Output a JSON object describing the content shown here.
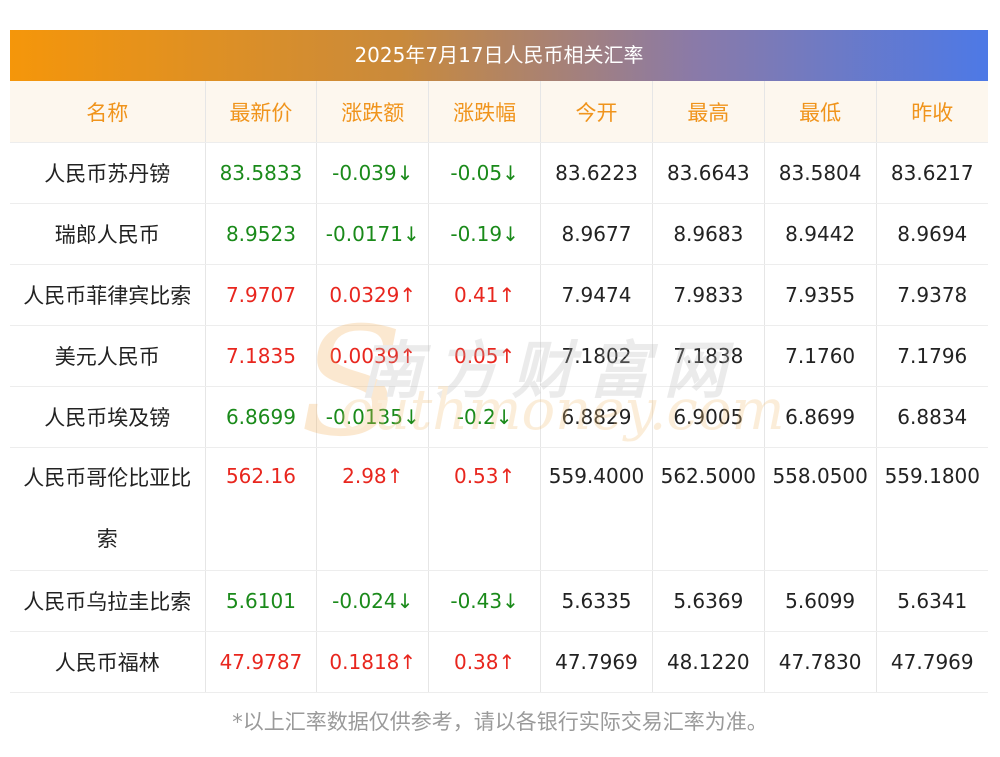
{
  "title": "2025年7月17日人民币相关汇率",
  "columns": [
    "名称",
    "最新价",
    "涨跌额",
    "涨跌幅",
    "今开",
    "最高",
    "最低",
    "昨收"
  ],
  "rows": [
    {
      "name": "人民币苏丹镑",
      "latest": "83.5833",
      "change": "-0.039↓",
      "pct": "-0.05↓",
      "open": "83.6223",
      "high": "83.6643",
      "low": "83.5804",
      "prev": "83.6217",
      "trend": "down"
    },
    {
      "name": "瑞郎人民币",
      "latest": "8.9523",
      "change": "-0.0171↓",
      "pct": "-0.19↓",
      "open": "8.9677",
      "high": "8.9683",
      "low": "8.9442",
      "prev": "8.9694",
      "trend": "down"
    },
    {
      "name": "人民币菲律宾比索",
      "latest": "7.9707",
      "change": "0.0329↑",
      "pct": "0.41↑",
      "open": "7.9474",
      "high": "7.9833",
      "low": "7.9355",
      "prev": "7.9378",
      "trend": "up"
    },
    {
      "name": "美元人民币",
      "latest": "7.1835",
      "change": "0.0039↑",
      "pct": "0.05↑",
      "open": "7.1802",
      "high": "7.1838",
      "low": "7.1760",
      "prev": "7.1796",
      "trend": "up"
    },
    {
      "name": "人民币埃及镑",
      "latest": "6.8699",
      "change": "-0.0135↓",
      "pct": "-0.2↓",
      "open": "6.8829",
      "high": "6.9005",
      "low": "6.8699",
      "prev": "6.8834",
      "trend": "down"
    },
    {
      "name": "人民币哥伦比亚比索",
      "latest": "562.16",
      "change": "2.98↑",
      "pct": "0.53↑",
      "open": "559.4000",
      "high": "562.5000",
      "low": "558.0500",
      "prev": "559.1800",
      "trend": "up"
    },
    {
      "name": "人民币乌拉圭比索",
      "latest": "5.6101",
      "change": "-0.024↓",
      "pct": "-0.43↓",
      "open": "5.6335",
      "high": "5.6369",
      "low": "5.6099",
      "prev": "5.6341",
      "trend": "down"
    },
    {
      "name": "人民币福林",
      "latest": "47.9787",
      "change": "0.1818↑",
      "pct": "0.38↑",
      "open": "47.7969",
      "high": "48.1220",
      "low": "47.7830",
      "prev": "47.7969",
      "trend": "up"
    }
  ],
  "watermark": {
    "cn": "南方财富网",
    "en": "outhmoney.com",
    "initial": "S"
  },
  "footer": "*以上汇率数据仅供参考，请以各银行实际交易汇率为准。",
  "colors": {
    "up": "#e8261e",
    "down": "#1a8a1a",
    "header_text": "#f0941c",
    "header_bg": "#fdf7ee"
  }
}
